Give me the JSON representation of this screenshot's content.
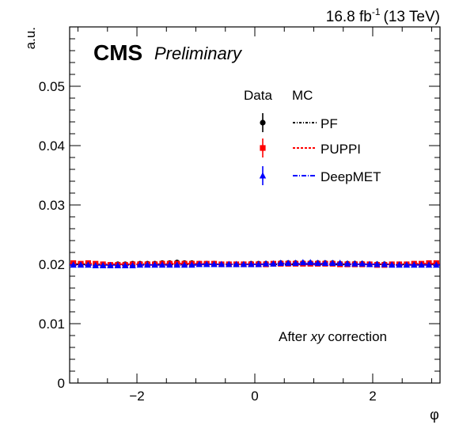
{
  "chart_data": {
    "type": "scatter",
    "header_right": {
      "lumi": "16.8 fb",
      "lumi_exp": "-1",
      "energy": "(13 TeV)"
    },
    "experiment": "CMS",
    "status": "Preliminary",
    "ylabel": "a.u.",
    "xlabel": "φ",
    "annotation": {
      "prefix": "After ",
      "italic": "xy",
      "suffix": " correction"
    },
    "xlim": [
      -3.1416,
      3.1416
    ],
    "ylim": [
      0,
      0.06
    ],
    "xticks": [
      {
        "value": -2,
        "label": "−2"
      },
      {
        "value": 0,
        "label": "0"
      },
      {
        "value": 2,
        "label": "2"
      }
    ],
    "yticks": [
      {
        "value": 0,
        "label": "0"
      },
      {
        "value": 0.01,
        "label": "0.01"
      },
      {
        "value": 0.02,
        "label": "0.02"
      },
      {
        "value": 0.03,
        "label": "0.03"
      },
      {
        "value": 0.04,
        "label": "0.04"
      },
      {
        "value": 0.05,
        "label": "0.05"
      }
    ],
    "legend": {
      "header_data": "Data",
      "header_mc": "MC",
      "entries": [
        "PF",
        "PUPPI",
        "DeepMET"
      ]
    },
    "bins": 50,
    "series": [
      {
        "name": "PF",
        "color": "#000000",
        "marker": "circle",
        "mc_dash": "3,2,1,2",
        "data": [
          0.0201,
          0.02,
          0.0201,
          0.02,
          0.02,
          0.0199,
          0.02,
          0.02,
          0.0201,
          0.0201,
          0.0201,
          0.0201,
          0.0202,
          0.0202,
          0.0203,
          0.0202,
          0.0202,
          0.0201,
          0.0201,
          0.0201,
          0.02,
          0.02,
          0.02,
          0.02,
          0.0201,
          0.0201,
          0.0201,
          0.0201,
          0.0202,
          0.0202,
          0.0202,
          0.0202,
          0.0202,
          0.0202,
          0.0202,
          0.0202,
          0.0201,
          0.0201,
          0.0201,
          0.0201,
          0.02,
          0.02,
          0.02,
          0.02,
          0.02,
          0.02,
          0.02,
          0.02,
          0.02,
          0.02
        ],
        "mc": [
          0.02,
          0.02,
          0.02,
          0.02,
          0.02,
          0.02,
          0.02,
          0.02,
          0.02,
          0.02,
          0.02,
          0.02,
          0.02,
          0.02,
          0.02,
          0.02,
          0.02,
          0.02,
          0.02,
          0.02,
          0.02,
          0.02,
          0.02,
          0.02,
          0.02,
          0.02,
          0.02,
          0.02,
          0.02,
          0.02,
          0.02,
          0.02,
          0.02,
          0.02,
          0.02,
          0.02,
          0.02,
          0.02,
          0.02,
          0.02,
          0.02,
          0.02,
          0.02,
          0.02,
          0.02,
          0.02,
          0.02,
          0.02,
          0.02,
          0.02
        ]
      },
      {
        "name": "PUPPI",
        "color": "#ff0000",
        "marker": "square",
        "mc_dash": "3,2",
        "data": [
          0.0202,
          0.0201,
          0.0202,
          0.0201,
          0.02,
          0.0199,
          0.0199,
          0.0199,
          0.02,
          0.02,
          0.02,
          0.02,
          0.0201,
          0.0201,
          0.0201,
          0.0201,
          0.0201,
          0.0201,
          0.0201,
          0.0201,
          0.02,
          0.02,
          0.02,
          0.02,
          0.02,
          0.02,
          0.02,
          0.0201,
          0.0201,
          0.0201,
          0.0201,
          0.0201,
          0.0201,
          0.0201,
          0.0201,
          0.0201,
          0.02,
          0.02,
          0.02,
          0.02,
          0.02,
          0.0199,
          0.0199,
          0.02,
          0.02,
          0.02,
          0.0201,
          0.0201,
          0.0202,
          0.0202
        ],
        "mc": [
          0.0201,
          0.0201,
          0.0201,
          0.02,
          0.02,
          0.02,
          0.02,
          0.02,
          0.02,
          0.02,
          0.02,
          0.02,
          0.02,
          0.0201,
          0.0201,
          0.0201,
          0.0201,
          0.0201,
          0.0201,
          0.02,
          0.02,
          0.02,
          0.02,
          0.02,
          0.02,
          0.02,
          0.02,
          0.02,
          0.02,
          0.02,
          0.02,
          0.02,
          0.02,
          0.02,
          0.02,
          0.02,
          0.02,
          0.02,
          0.02,
          0.02,
          0.02,
          0.02,
          0.02,
          0.02,
          0.02,
          0.02,
          0.02,
          0.0201,
          0.0201,
          0.0201
        ]
      },
      {
        "name": "DeepMET",
        "color": "#0000ff",
        "marker": "triangle",
        "mc_dash": "6,2,1,2",
        "data": [
          0.0199,
          0.0199,
          0.0199,
          0.0198,
          0.0198,
          0.0198,
          0.0198,
          0.0198,
          0.0198,
          0.0199,
          0.0199,
          0.0199,
          0.0199,
          0.0199,
          0.0199,
          0.0199,
          0.0199,
          0.02,
          0.02,
          0.02,
          0.02,
          0.02,
          0.02,
          0.02,
          0.02,
          0.02,
          0.0201,
          0.0201,
          0.0202,
          0.0202,
          0.0202,
          0.0203,
          0.0203,
          0.0202,
          0.0202,
          0.0202,
          0.0202,
          0.0201,
          0.0201,
          0.0201,
          0.02,
          0.02,
          0.02,
          0.0199,
          0.0199,
          0.0199,
          0.0199,
          0.0199,
          0.0199,
          0.0199
        ],
        "mc": [
          0.0199,
          0.0199,
          0.0199,
          0.0199,
          0.0199,
          0.0199,
          0.0199,
          0.0199,
          0.0199,
          0.0199,
          0.0199,
          0.0199,
          0.0199,
          0.0199,
          0.0199,
          0.0199,
          0.0199,
          0.02,
          0.02,
          0.02,
          0.02,
          0.02,
          0.02,
          0.02,
          0.02,
          0.02,
          0.02,
          0.02,
          0.0201,
          0.0201,
          0.0201,
          0.0201,
          0.0201,
          0.0201,
          0.0201,
          0.0201,
          0.02,
          0.02,
          0.02,
          0.02,
          0.02,
          0.02,
          0.02,
          0.02,
          0.0199,
          0.0199,
          0.0199,
          0.0199,
          0.0199,
          0.0199
        ]
      }
    ]
  }
}
